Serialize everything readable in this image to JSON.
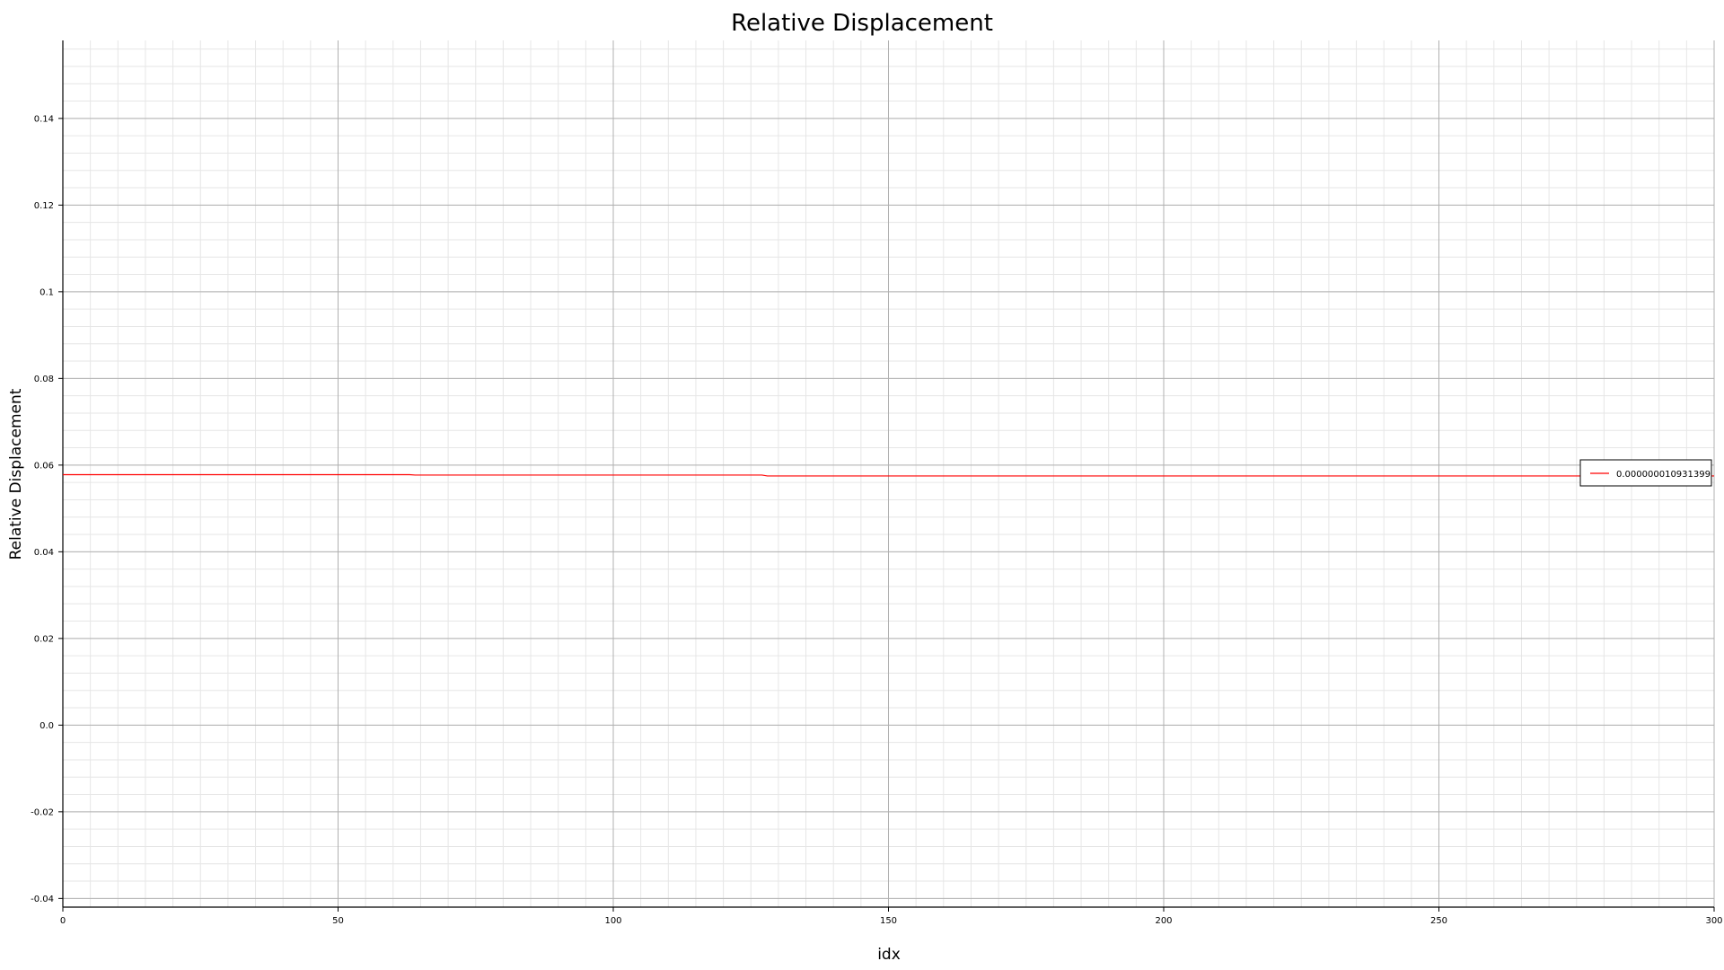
{
  "chart_data": {
    "type": "line",
    "title": "Relative Displacement",
    "xlabel": "idx",
    "ylabel": "Relative Displacement",
    "xlim": [
      0,
      300
    ],
    "ylim": [
      -0.042,
      0.158
    ],
    "x_ticks": [
      0,
      50,
      100,
      150,
      200,
      250,
      300
    ],
    "x_tick_labels": [
      "0",
      "50",
      "100",
      "150",
      "200",
      "250",
      "300"
    ],
    "y_ticks": [
      -0.04,
      -0.02,
      0.0,
      0.02,
      0.04,
      0.06,
      0.08,
      0.1,
      0.12,
      0.14
    ],
    "y_tick_labels": [
      "-0.04",
      "-0.02",
      "0.0",
      "0.02",
      "0.04",
      "0.06",
      "0.08",
      "0.1",
      "0.12",
      "0.14"
    ],
    "grid": "major and minor",
    "legend_position": "right",
    "series": [
      {
        "name": "0.000000010931399",
        "color": "#ff0000",
        "x": [
          0,
          63,
          64,
          127,
          128,
          300
        ],
        "y": [
          0.0578,
          0.0578,
          0.0577,
          0.0577,
          0.0575,
          0.0575
        ]
      }
    ]
  }
}
